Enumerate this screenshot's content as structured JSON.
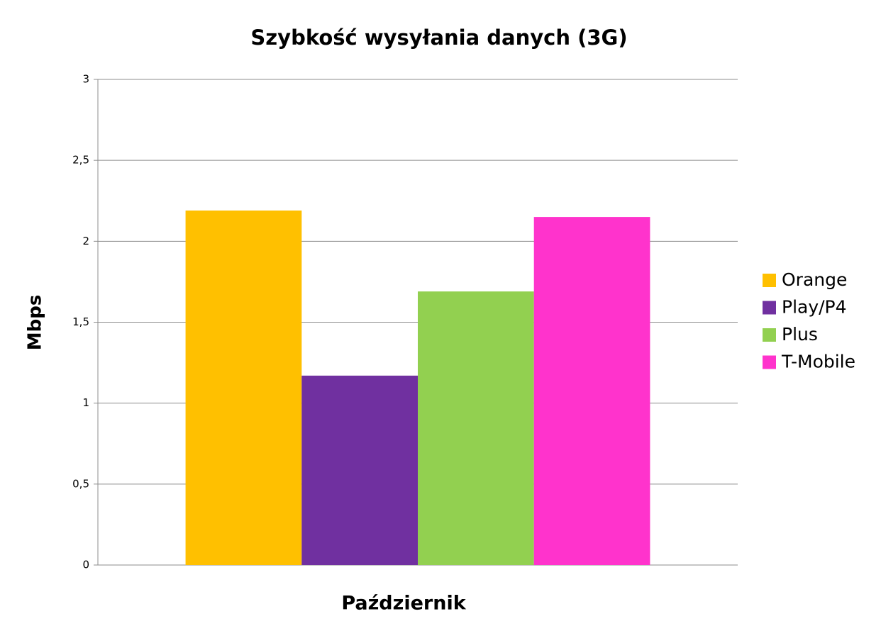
{
  "chart_data": {
    "type": "bar",
    "title": "Szybkość wysyłania danych (3G)",
    "y_label": "Mbps",
    "categories": [
      "Październik"
    ],
    "series": [
      {
        "name": "Orange",
        "color": "#ffc000",
        "values": [
          2.19
        ]
      },
      {
        "name": "Play/P4",
        "color": "#7030a0",
        "values": [
          1.17
        ]
      },
      {
        "name": "Plus",
        "color": "#92d050",
        "values": [
          1.69
        ]
      },
      {
        "name": "T-Mobile",
        "color": "#ff33cc",
        "values": [
          2.15
        ]
      }
    ],
    "ylim": [
      0,
      3
    ],
    "yticks": [
      0,
      {
        "value": 0.5,
        "label": "0,5"
      },
      1,
      {
        "value": 1.5,
        "label": "1,5"
      },
      2,
      {
        "value": 2.5,
        "label": "2,5"
      },
      3
    ],
    "grid": true,
    "legend": "right"
  }
}
